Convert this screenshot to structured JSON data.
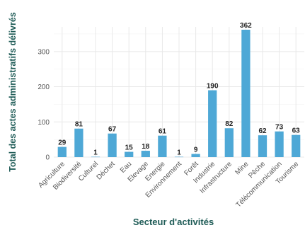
{
  "chart_data": {
    "type": "bar",
    "xlabel": "Secteur d'activités",
    "ylabel": "Total des actes administratifs délivrés",
    "categories": [
      "Agriculture",
      "Biodiversité",
      "Culturel",
      "Déchet",
      "Eau",
      "Elevage",
      "Energie",
      "Environnement",
      "Forêt",
      "Industrie",
      "Infrastructure",
      "Mine",
      "Pêche",
      "Télécommunication",
      "Tourisme"
    ],
    "values": [
      29,
      81,
      1,
      67,
      15,
      18,
      61,
      1,
      9,
      190,
      82,
      362,
      62,
      73,
      63
    ],
    "data_labels": [
      "29",
      "81",
      "1",
      "67",
      "15",
      "18",
      "61",
      "1",
      "9",
      "190",
      "82",
      "362",
      "62",
      "73",
      "63"
    ],
    "yticks": [
      "0",
      "100",
      "200",
      "300"
    ],
    "ytick_values": [
      0,
      100,
      200,
      300
    ],
    "ylim": [
      0,
      362
    ],
    "grid": true,
    "legend": "none",
    "bar_color": "#4ea8d6",
    "title_color": "#1f5c57"
  }
}
